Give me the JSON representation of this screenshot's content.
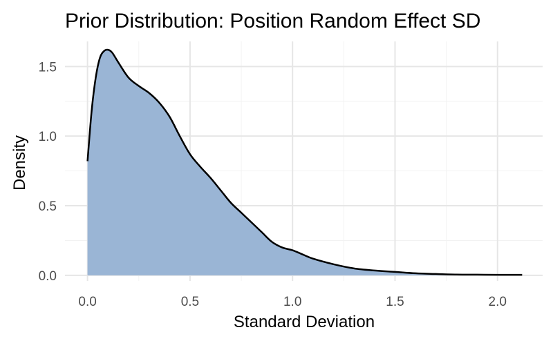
{
  "chart_data": {
    "type": "area",
    "title": "Prior Distribution: Position Random Effect SD",
    "xlabel": "Standard Deviation",
    "ylabel": "Density",
    "xlim": [
      -0.11,
      2.22
    ],
    "ylim": [
      -0.04,
      1.68
    ],
    "x_ticks": [
      0.0,
      0.5,
      1.0,
      1.5,
      2.0
    ],
    "x_tick_labels": [
      "0.0",
      "0.5",
      "1.0",
      "1.5",
      "2.0"
    ],
    "y_ticks": [
      0.0,
      0.5,
      1.0,
      1.5
    ],
    "y_tick_labels": [
      "0.0",
      "0.5",
      "1.0",
      "1.5"
    ],
    "grid": true,
    "legend": "none",
    "colors": {
      "fill": "#9ab5d5",
      "line": "#000000",
      "grid_major": "#e6e6e6",
      "grid_minor": "#f2f2f2"
    },
    "series": [
      {
        "x": [
          0.0,
          0.02,
          0.04,
          0.06,
          0.08,
          0.1,
          0.12,
          0.15,
          0.2,
          0.25,
          0.3,
          0.35,
          0.4,
          0.45,
          0.5,
          0.55,
          0.6,
          0.65,
          0.7,
          0.75,
          0.8,
          0.85,
          0.9,
          0.95,
          1.0,
          1.05,
          1.1,
          1.2,
          1.3,
          1.4,
          1.5,
          1.6,
          1.7,
          1.8,
          1.9,
          2.0,
          2.12
        ],
        "y": [
          0.82,
          1.18,
          1.42,
          1.56,
          1.61,
          1.62,
          1.6,
          1.53,
          1.42,
          1.36,
          1.31,
          1.24,
          1.14,
          1.0,
          0.87,
          0.78,
          0.7,
          0.61,
          0.52,
          0.45,
          0.38,
          0.31,
          0.24,
          0.2,
          0.18,
          0.15,
          0.12,
          0.08,
          0.05,
          0.035,
          0.025,
          0.015,
          0.01,
          0.006,
          0.005,
          0.004,
          0.004
        ]
      }
    ]
  }
}
